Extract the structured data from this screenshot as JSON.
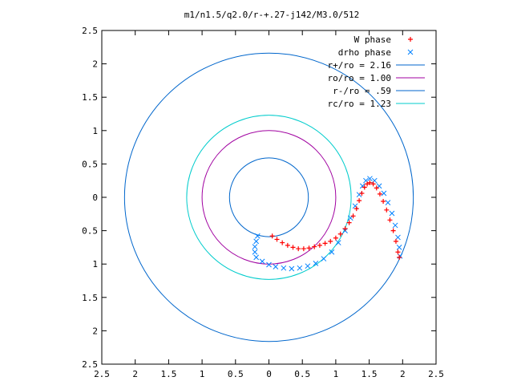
{
  "chart_data": {
    "type": "scatter",
    "title": "m1/n1.5/q2.0/r-+.27-j142/M3.0/512",
    "xlabel": "",
    "ylabel": "",
    "xlim": [
      -2.5,
      2.5
    ],
    "ylim": [
      -2.5,
      2.5
    ],
    "x_ticks": [
      -2.5,
      -2,
      -1.5,
      -1,
      -0.5,
      0,
      0.5,
      1,
      1.5,
      2,
      2.5
    ],
    "y_ticks": [
      -2.5,
      -2,
      -1.5,
      -1,
      -0.5,
      0,
      0.5,
      1,
      1.5,
      2,
      2.5
    ],
    "x_tick_labels": [
      "2.5",
      "2",
      "1.5",
      "1",
      "0.5",
      "0",
      "0.5",
      "1",
      "1.5",
      "2",
      "2.5"
    ],
    "y_tick_labels": [
      "2.5",
      "2",
      "1.5",
      "1",
      "0.5",
      "0",
      "0.5",
      "1",
      "1.5",
      "2",
      "2.5"
    ],
    "grid": false,
    "legend_position": "top-right",
    "series": [
      {
        "name": "W phase",
        "kind": "points",
        "marker": "+",
        "color": "#ff0000",
        "points": [
          [
            0.05,
            -0.58
          ],
          [
            0.12,
            -0.63
          ],
          [
            0.2,
            -0.68
          ],
          [
            0.28,
            -0.72
          ],
          [
            0.36,
            -0.75
          ],
          [
            0.44,
            -0.77
          ],
          [
            0.52,
            -0.77
          ],
          [
            0.6,
            -0.76
          ],
          [
            0.68,
            -0.74
          ],
          [
            0.76,
            -0.72
          ],
          [
            0.84,
            -0.69
          ],
          [
            0.92,
            -0.66
          ],
          [
            1.0,
            -0.61
          ],
          [
            1.07,
            -0.55
          ],
          [
            1.14,
            -0.47
          ],
          [
            1.2,
            -0.38
          ],
          [
            1.26,
            -0.28
          ],
          [
            1.31,
            -0.17
          ],
          [
            1.35,
            -0.05
          ],
          [
            1.39,
            0.06
          ],
          [
            1.43,
            0.15
          ],
          [
            1.47,
            0.2
          ],
          [
            1.51,
            0.22
          ],
          [
            1.56,
            0.2
          ],
          [
            1.61,
            0.14
          ],
          [
            1.66,
            0.05
          ],
          [
            1.71,
            -0.06
          ],
          [
            1.76,
            -0.19
          ],
          [
            1.81,
            -0.34
          ],
          [
            1.86,
            -0.5
          ],
          [
            1.9,
            -0.66
          ],
          [
            1.93,
            -0.82
          ],
          [
            1.95,
            -0.9
          ]
        ]
      },
      {
        "name": "drho phase",
        "kind": "points",
        "marker": "x",
        "color": "#0080ff",
        "points": [
          [
            -0.17,
            -0.58
          ],
          [
            -0.19,
            -0.66
          ],
          [
            -0.21,
            -0.74
          ],
          [
            -0.21,
            -0.82
          ],
          [
            -0.19,
            -0.9
          ],
          [
            -0.1,
            -0.96
          ],
          [
            0.0,
            -1.01
          ],
          [
            0.1,
            -1.04
          ],
          [
            0.22,
            -1.06
          ],
          [
            0.34,
            -1.07
          ],
          [
            0.46,
            -1.06
          ],
          [
            0.58,
            -1.03
          ],
          [
            0.7,
            -0.99
          ],
          [
            0.82,
            -0.92
          ],
          [
            0.94,
            -0.82
          ],
          [
            1.04,
            -0.68
          ],
          [
            1.14,
            -0.5
          ],
          [
            1.22,
            -0.31
          ],
          [
            1.29,
            -0.13
          ],
          [
            1.35,
            0.04
          ],
          [
            1.4,
            0.17
          ],
          [
            1.45,
            0.25
          ],
          [
            1.51,
            0.28
          ],
          [
            1.58,
            0.25
          ],
          [
            1.65,
            0.17
          ],
          [
            1.72,
            0.06
          ],
          [
            1.78,
            -0.08
          ],
          [
            1.84,
            -0.24
          ],
          [
            1.89,
            -0.42
          ],
          [
            1.93,
            -0.6
          ],
          [
            1.95,
            -0.75
          ],
          [
            1.96,
            -0.88
          ]
        ]
      },
      {
        "name": "r+/ro = 2.16",
        "kind": "circle",
        "radius": 2.16,
        "color": "#0066cc"
      },
      {
        "name": "ro/ro = 1.00",
        "kind": "circle",
        "radius": 1.0,
        "color": "#a000a0"
      },
      {
        "name": "r-/ro = .59",
        "kind": "circle",
        "radius": 0.59,
        "color": "#0066cc"
      },
      {
        "name": "rc/ro = 1.23",
        "kind": "circle",
        "radius": 1.23,
        "color": "#00cccc"
      }
    ]
  }
}
